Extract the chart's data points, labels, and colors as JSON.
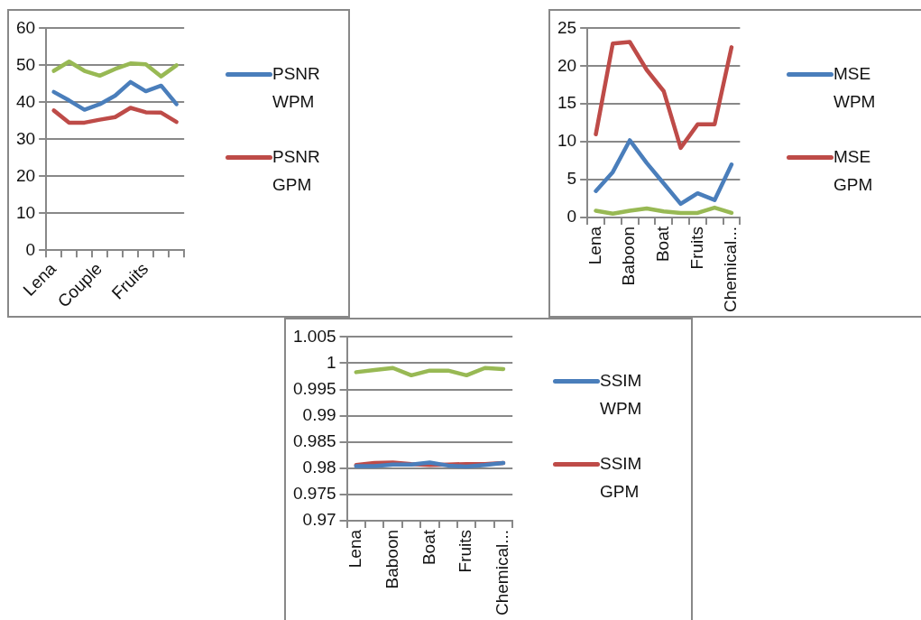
{
  "chart_data": [
    {
      "type": "line",
      "categories": [
        "Lena",
        null,
        null,
        "Couple",
        null,
        null,
        "Fruits",
        null,
        null
      ],
      "ylim": [
        0,
        60
      ],
      "yticks": [
        0,
        10,
        20,
        30,
        40,
        50,
        60
      ],
      "grid": "y",
      "legend": "right",
      "series": [
        {
          "name": "PSNR WPM",
          "color": "#4a7ebb",
          "values": [
            42.8,
            40.5,
            38,
            39.5,
            41.8,
            45.5,
            43,
            44.5,
            39.5
          ]
        },
        {
          "name": "PSNR GPM",
          "color": "#be4b48",
          "values": [
            37.8,
            34.5,
            34.5,
            35.3,
            36,
            38.5,
            37.3,
            37.2,
            34.7
          ]
        },
        {
          "color": "#98b954",
          "values": [
            48.5,
            51,
            48.5,
            47.2,
            49,
            50.5,
            50.3,
            47,
            50
          ]
        }
      ]
    },
    {
      "type": "line",
      "categories": [
        "Lena",
        null,
        "Baboon",
        null,
        "Boat",
        null,
        "Fruits",
        null,
        "Chemical..."
      ],
      "ylim": [
        0,
        25
      ],
      "yticks": [
        0,
        5,
        10,
        15,
        20,
        25
      ],
      "grid": "y",
      "legend": "right",
      "series": [
        {
          "name": "MSE WPM",
          "color": "#4a7ebb",
          "values": [
            3.5,
            6,
            10.2,
            7.2,
            4.5,
            1.8,
            3.2,
            2.3,
            7
          ]
        },
        {
          "name": "MSE GPM",
          "color": "#be4b48",
          "values": [
            11,
            23,
            23.2,
            19.5,
            16.7,
            9.2,
            12.3,
            12.3,
            22.5
          ]
        },
        {
          "color": "#98b954",
          "values": [
            0.9,
            0.5,
            0.9,
            1.2,
            0.8,
            0.6,
            0.6,
            1.3,
            0.6
          ]
        }
      ]
    },
    {
      "type": "line",
      "categories": [
        "Lena",
        null,
        "Baboon",
        null,
        "Boat",
        null,
        "Fruits",
        null,
        "Chemical..."
      ],
      "ylim": [
        0.97,
        1.005
      ],
      "yticks": [
        0.97,
        0.975,
        0.98,
        0.985,
        0.99,
        0.995,
        1,
        1.005
      ],
      "grid": "y",
      "legend": "right",
      "series": [
        {
          "name": "SSIM WPM",
          "color": "#4a7ebb",
          "values": [
            0.9804,
            0.9804,
            0.9807,
            0.9807,
            0.9811,
            0.9805,
            0.9803,
            0.9806,
            0.981
          ]
        },
        {
          "name": "SSIM GPM",
          "color": "#be4b48",
          "values": [
            0.9806,
            0.981,
            0.9811,
            0.9808,
            0.9806,
            0.9807,
            0.9808,
            0.9808,
            0.981
          ]
        },
        {
          "color": "#98b954",
          "values": [
            0.9983,
            0.9987,
            0.9991,
            0.9977,
            0.9986,
            0.9986,
            0.9977,
            0.9991,
            0.9989
          ]
        }
      ]
    }
  ]
}
